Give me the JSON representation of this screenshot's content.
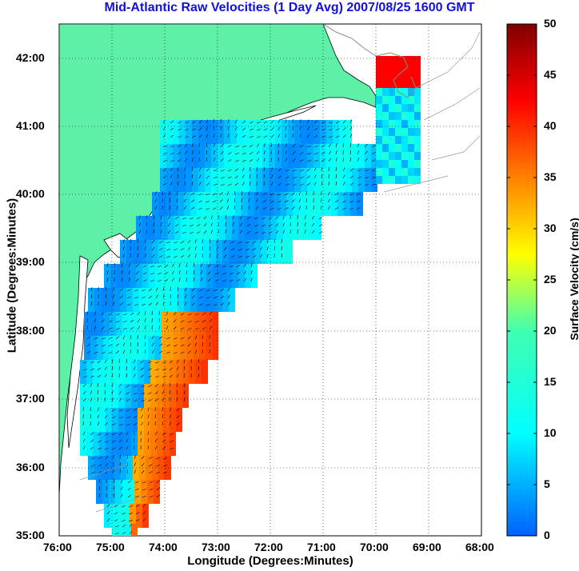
{
  "title": "Mid-Atlantic Raw Velocities (1 Day Avg) 2007/08/25 1600 GMT",
  "xlabel": "Longitude (Degrees:Minutes)",
  "ylabel": "Latitude (Degrees:Minutes)",
  "colorbar_label": "Surface Velocity (cm/s)",
  "x_ticks": [
    "76:00",
    "75:00",
    "74:00",
    "73:00",
    "72:00",
    "71:00",
    "70:00",
    "69:00",
    "68:00"
  ],
  "y_ticks": [
    "42:00",
    "41:00",
    "40:00",
    "39:00",
    "38:00",
    "37:00",
    "36:00",
    "35:00"
  ],
  "colorbar_ticks": [
    "50",
    "45",
    "40",
    "35",
    "30",
    "25",
    "20",
    "15",
    "10",
    "5",
    "0"
  ],
  "colors": {
    "title": "#1010e0",
    "land": "#5ff0a8",
    "background": "#ffffff"
  },
  "chart_data": {
    "type": "heatmap",
    "title": "Mid-Atlantic Raw Velocities (1 Day Avg) 2007/08/25 1600 GMT",
    "xlabel": "Longitude (Degrees:Minutes)",
    "ylabel": "Latitude (Degrees:Minutes)",
    "xlim": [
      -76,
      -68
    ],
    "ylim": [
      35,
      42.5
    ],
    "colorbar": {
      "label": "Surface Velocity (cm/s)",
      "range": [
        0,
        50
      ],
      "colormap": "jet"
    },
    "grid": true
  }
}
